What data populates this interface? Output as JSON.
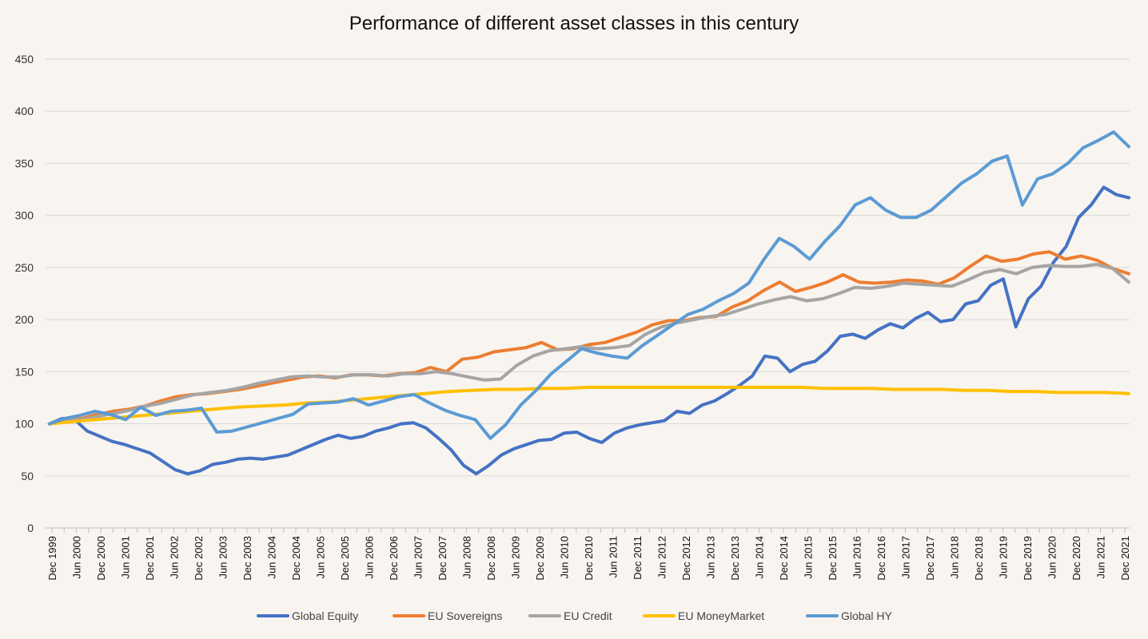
{
  "chart_data": {
    "type": "line",
    "title": "Performance of different asset classes in this century",
    "xlabel": "",
    "ylabel": "",
    "ylim": [
      0,
      450
    ],
    "yticks": [
      0,
      50,
      100,
      150,
      200,
      250,
      300,
      350,
      400,
      450
    ],
    "grid": true,
    "legend_position": "bottom",
    "x_start": "Dec 1999",
    "x_end": "May 2022",
    "x_step": "quarter",
    "x_tick_labels": [
      "Dec 1999",
      "Jun 2000",
      "Dec 2000",
      "Jun 2001",
      "Dec 2001",
      "Jun 2002",
      "Dec 2002",
      "Jun 2003",
      "Dec 2003",
      "Jun 2004",
      "Dec 2004",
      "Jun 2005",
      "Dec 2005",
      "Jun 2006",
      "Dec 2006",
      "Jun 2007",
      "Dec 2007",
      "Jun 2008",
      "Dec 2008",
      "Jun 2009",
      "Dec 2009",
      "Jun 2010",
      "Dec 2010",
      "Jun 2011",
      "Dec 2011",
      "Jun 2012",
      "Dec 2012",
      "Jun 2013",
      "Dec 2013",
      "Jun 2014",
      "Dec 2014",
      "Jun 2015",
      "Dec 2015",
      "Jun 2016",
      "Dec 2016",
      "Jun 2017",
      "Dec 2017",
      "Jun 2018",
      "Dec 2018",
      "Jun 2019",
      "Dec 2019",
      "Jun 2020",
      "Dec 2020",
      "Jun 2021",
      "Dec 2021"
    ],
    "series": [
      {
        "name": "Global Equity",
        "color": "#4472c4",
        "values": [
          100,
          105,
          104,
          93,
          88,
          83,
          80,
          76,
          72,
          64,
          56,
          52,
          55,
          61,
          63,
          66,
          67,
          66,
          68,
          70,
          75,
          80,
          85,
          89,
          86,
          88,
          93,
          96,
          100,
          101,
          96,
          86,
          75,
          60,
          52,
          60,
          70,
          76,
          80,
          84,
          85,
          91,
          92,
          86,
          82,
          91,
          96,
          99,
          101,
          103,
          112,
          110,
          118,
          122,
          129,
          137,
          146,
          165,
          163,
          150,
          157,
          160,
          170,
          184,
          186,
          182,
          190,
          196,
          192,
          201,
          207,
          198,
          200,
          215,
          218,
          233,
          239,
          193,
          220,
          232,
          255,
          270,
          298,
          310,
          327,
          320,
          317
        ]
      },
      {
        "name": "EU Sovereigns",
        "color": "#ed7d31",
        "values": [
          100,
          104,
          105,
          109,
          112,
          114,
          117,
          122,
          126,
          128,
          129,
          131,
          133,
          136,
          139,
          142,
          145,
          146,
          144,
          147,
          147,
          146,
          148,
          149,
          154,
          150,
          162,
          164,
          169,
          171,
          173,
          178,
          171,
          172,
          176,
          178,
          183,
          188,
          195,
          199,
          199,
          202,
          203,
          212,
          218,
          228,
          236,
          227,
          231,
          236,
          243,
          236,
          235,
          236,
          238,
          237,
          234,
          240,
          251,
          261,
          256,
          258,
          263,
          265,
          258,
          261,
          257,
          249,
          244
        ]
      },
      {
        "name": "EU Credit",
        "color": "#a5a5a5",
        "values": [
          100,
          103,
          104,
          107,
          110,
          113,
          117,
          120,
          124,
          128,
          130,
          132,
          135,
          139,
          142,
          145,
          146,
          145,
          145,
          147,
          147,
          146,
          148,
          148,
          150,
          148,
          145,
          142,
          143,
          156,
          165,
          170,
          172,
          174,
          172,
          173,
          175,
          186,
          193,
          197,
          200,
          203,
          205,
          210,
          215,
          219,
          222,
          218,
          220,
          225,
          231,
          230,
          232,
          235,
          234,
          233,
          232,
          238,
          245,
          248,
          244,
          250,
          252,
          251,
          251,
          253,
          249,
          236
        ]
      },
      {
        "name": "EU MoneyMarket",
        "color": "#ffc000",
        "values": [
          100,
          102,
          104,
          106,
          108,
          110,
          112,
          114,
          116,
          117,
          118,
          120,
          121,
          123,
          125,
          127,
          129,
          131,
          132,
          133,
          133,
          134,
          134,
          135,
          135,
          135,
          135,
          135,
          135,
          135,
          135,
          135,
          135,
          134,
          134,
          134,
          133,
          133,
          133,
          132,
          132,
          131,
          131,
          130,
          130,
          130,
          129
        ]
      },
      {
        "name": "Global HY",
        "color": "#5b9bd5",
        "values": [
          100,
          105,
          108,
          112,
          109,
          104,
          116,
          108,
          112,
          113,
          115,
          92,
          93,
          97,
          101,
          105,
          109,
          119,
          120,
          121,
          124,
          118,
          122,
          126,
          128,
          120,
          113,
          108,
          104,
          86,
          99,
          118,
          132,
          148,
          160,
          172,
          168,
          165,
          163,
          175,
          185,
          195,
          205,
          210,
          218,
          225,
          235,
          258,
          278,
          270,
          258,
          275,
          290,
          310,
          317,
          305,
          298,
          298,
          305,
          318,
          331,
          340,
          352,
          357,
          310,
          335,
          340,
          350,
          365,
          372,
          380,
          366
        ]
      }
    ]
  }
}
